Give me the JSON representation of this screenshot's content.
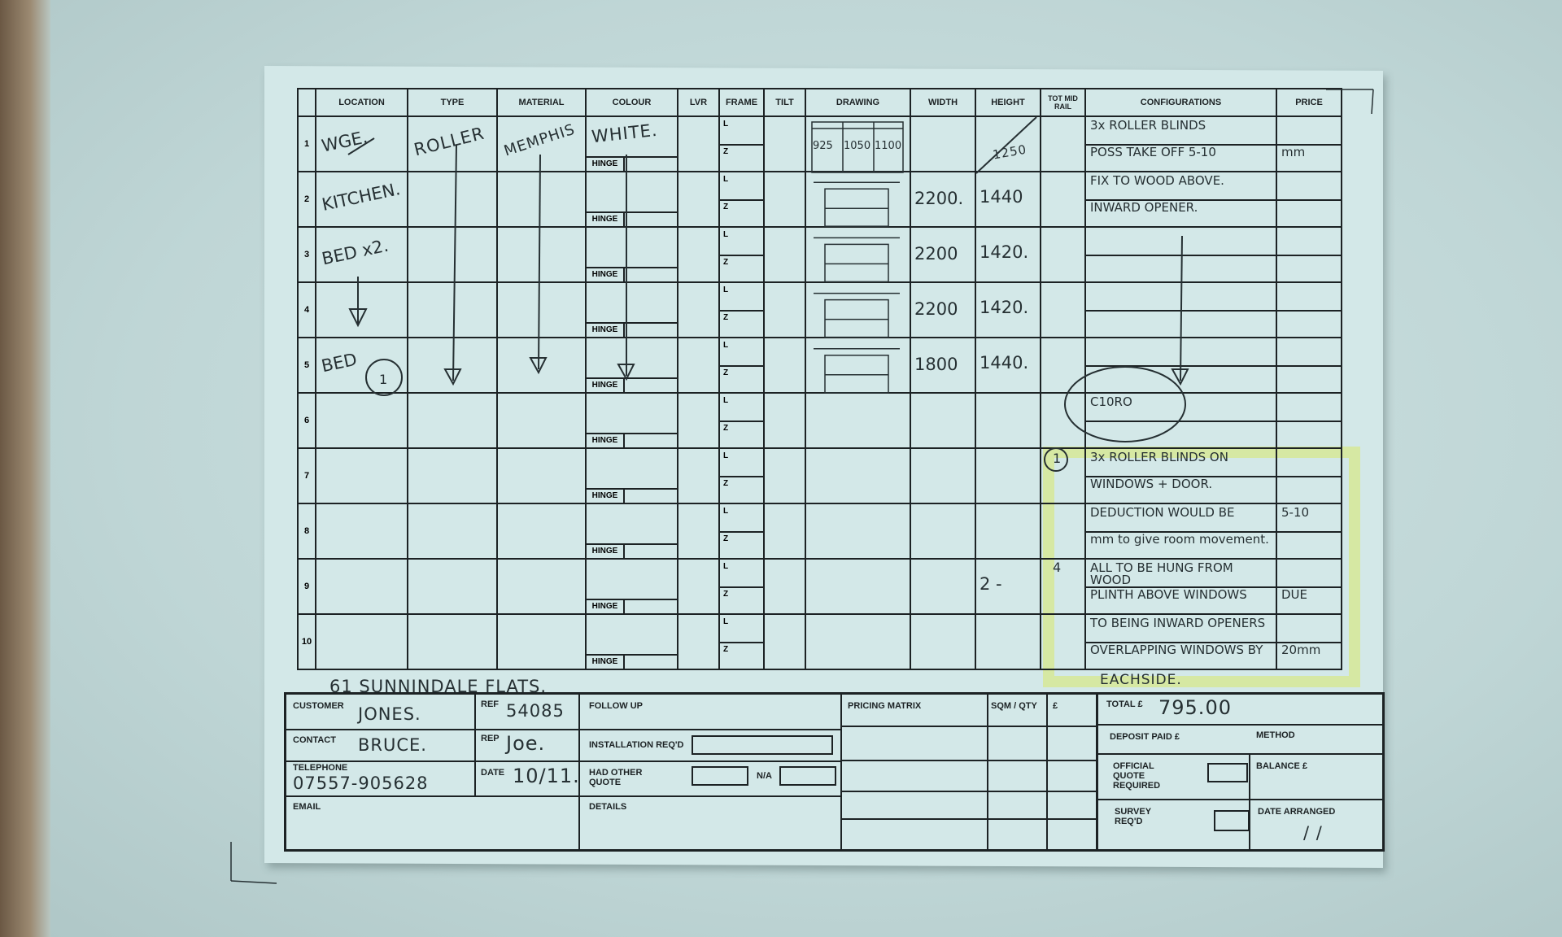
{
  "form": {
    "headers": [
      "",
      "LOCATION",
      "TYPE",
      "MATERIAL",
      "COLOUR",
      "LVR",
      "FRAME",
      "TILT",
      "DRAWING",
      "WIDTH",
      "HEIGHT",
      "TOT MID RAIL",
      "CONFIGURATIONS",
      "PRICE"
    ],
    "hinge_label": "HINGE",
    "frame_labels": [
      "L",
      "Z"
    ],
    "rows": [
      {
        "num": "1",
        "location": "WGE.",
        "type": "ROLLER",
        "material": "MEMPHIS",
        "colour": "WHITE.",
        "width": "",
        "height": "1250",
        "totmid": "",
        "config": [
          "3x ROLLER BLINDS",
          "POSS TAKE OFF 5-10"
        ],
        "price": [
          "",
          "mm"
        ],
        "drawing_labels": [
          "925",
          "1050",
          "1100"
        ]
      },
      {
        "num": "2",
        "location": "KITCHEN.",
        "type": "",
        "material": "",
        "colour": "",
        "width": "2200.",
        "height": "1440",
        "totmid": "",
        "config": [
          "FIX TO WOOD ABOVE.",
          "INWARD OPENER."
        ],
        "price": [
          "",
          ""
        ]
      },
      {
        "num": "3",
        "location": "BED x2.",
        "type": "",
        "material": "",
        "colour": "",
        "width": "2200",
        "height": "1420.",
        "totmid": "",
        "config": [
          "",
          ""
        ],
        "price": [
          "",
          ""
        ]
      },
      {
        "num": "4",
        "location": "",
        "type": "",
        "material": "",
        "colour": "",
        "width": "2200",
        "height": "1420.",
        "totmid": "",
        "config": [
          "",
          ""
        ],
        "price": [
          "",
          ""
        ]
      },
      {
        "num": "5",
        "location": "BED",
        "type": "",
        "material": "",
        "colour": "",
        "width": "1800",
        "height": "1440.",
        "totmid": "",
        "config": [
          "",
          ""
        ],
        "price": [
          "",
          ""
        ]
      },
      {
        "num": "6",
        "location": "",
        "type": "",
        "material": "",
        "colour": "",
        "width": "",
        "height": "",
        "totmid": "",
        "config": [
          "C10RO",
          ""
        ],
        "price": [
          "",
          ""
        ]
      },
      {
        "num": "7",
        "location": "",
        "type": "",
        "material": "",
        "colour": "",
        "width": "",
        "height": "",
        "totmid": "1",
        "config": [
          "3x ROLLER BLINDS ON",
          "WINDOWS + DOOR."
        ],
        "price": [
          "",
          ""
        ]
      },
      {
        "num": "8",
        "location": "",
        "type": "",
        "material": "",
        "colour": "",
        "width": "",
        "height": "",
        "totmid": "",
        "config": [
          "DEDUCTION WOULD BE",
          "mm to give room movement."
        ],
        "price": [
          "5-10",
          ""
        ]
      },
      {
        "num": "9",
        "location": "",
        "type": "",
        "material": "",
        "colour": "",
        "width": "",
        "height": "2 -",
        "totmid": "4",
        "config": [
          "ALL TO BE HUNG FROM WOOD",
          "PLINTH ABOVE WINDOWS"
        ],
        "price": [
          "",
          "DUE"
        ]
      },
      {
        "num": "10",
        "location": "",
        "type": "",
        "material": "",
        "colour": "",
        "width": "",
        "height": "",
        "totmid": "",
        "config": [
          "TO BEING INWARD OPENERS",
          "OVERLAPPING WINDOWS BY"
        ],
        "price": [
          "",
          "20mm"
        ]
      }
    ],
    "location_circle_note": "1",
    "note_eachside": "EACHSIDE.",
    "address": "61   SUNNINDALE FLATS."
  },
  "details": {
    "customer_label": "CUSTOMER",
    "customer": "JONES.",
    "ref_label": "REF",
    "ref": "54085",
    "contact_label": "CONTACT",
    "contact": "BRUCE.",
    "rep_label": "REP",
    "rep": "Joe.",
    "telephone_label": "TELEPHONE",
    "telephone": "07557-905628",
    "date_label": "DATE",
    "date": "10/11.",
    "email_label": "EMAIL",
    "follow_up_label": "FOLLOW UP",
    "installation_label": "INSTALLATION REQ'D",
    "had_other_quote_label": "HAD OTHER QUOTE",
    "na_label": "N/A",
    "details_label": "DETAILS",
    "pricing_matrix_label": "PRICING MATRIX",
    "sqm_label": "SQM / QTY",
    "pound_label": "£",
    "total_label": "TOTAL £",
    "total": "795.00",
    "deposit_label": "DEPOSIT PAID £",
    "method_label": "METHOD",
    "official_quote_label": "OFFICIAL QUOTE REQUIRED",
    "balance_label": "BALANCE £",
    "survey_label": "SURVEY REQ'D",
    "date_arranged_label": "DATE ARRANGED",
    "date_arranged": "/   /"
  },
  "colors": {
    "paper": "#d3e8e8",
    "ink": "#1c2224",
    "highlighter": "#d9e86a"
  }
}
